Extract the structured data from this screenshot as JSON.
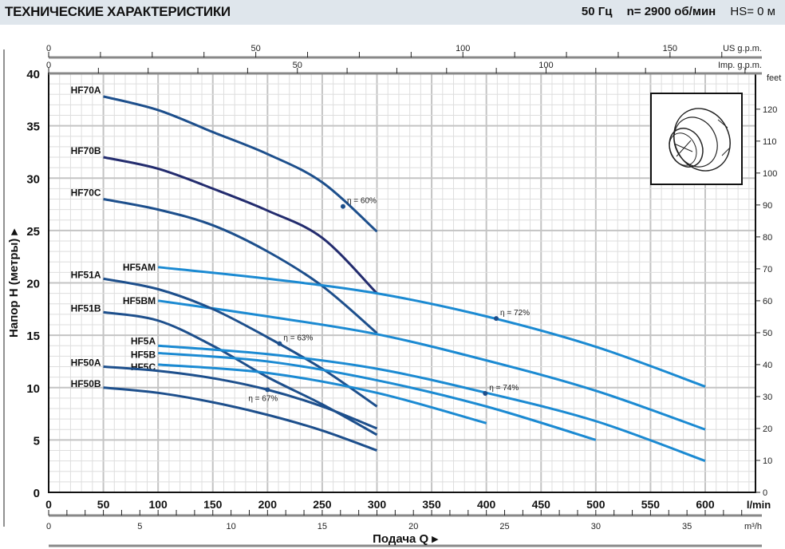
{
  "header": {
    "title": "ТЕХНИЧЕСКИЕ ХАРАКТЕРИСТИКИ",
    "frequency": "50 Гц",
    "speed": "n= 2900  об/мин",
    "hs": "HS= 0 м"
  },
  "chart_data": {
    "type": "line",
    "title": "ТЕХНИЧЕСКИЕ ХАРАКТЕРИСТИКИ",
    "xlabel": "Подача Q ▸",
    "ylabel": "Напор H (метры) ▸",
    "xlim": [
      0,
      600
    ],
    "ylim": [
      0,
      40
    ],
    "x_unit": "l/min",
    "x_ticks": [
      0,
      50,
      100,
      150,
      200,
      250,
      300,
      350,
      400,
      450,
      500,
      550,
      600
    ],
    "y_ticks": [
      0,
      5,
      10,
      15,
      20,
      25,
      30,
      35,
      40
    ],
    "grid": true,
    "secondary_axes": {
      "us_gpm": {
        "label": "US g.p.m.",
        "ticks": [
          0,
          50,
          100,
          150
        ],
        "range": [
          0,
          158.5
        ]
      },
      "imp_gpm": {
        "label": "Imp. g.p.m.",
        "ticks": [
          0,
          50,
          100
        ],
        "range": [
          0,
          132
        ]
      },
      "m3h": {
        "label": "m³/h",
        "ticks": [
          0,
          5,
          10,
          15,
          20,
          25,
          30,
          35
        ],
        "range": [
          0,
          36
        ]
      },
      "feet": {
        "label": "feet",
        "ticks": [
          0,
          10,
          20,
          30,
          40,
          50,
          60,
          70,
          80,
          90,
          100,
          110,
          120
        ],
        "range": [
          0,
          131.2
        ]
      }
    },
    "series": [
      {
        "name": "HF70A",
        "color": "#1d4f8c",
        "x": [
          50,
          100,
          150,
          200,
          250,
          300
        ],
        "y": [
          37.8,
          36.5,
          34.4,
          32.3,
          29.6,
          24.9
        ]
      },
      {
        "name": "HF70B",
        "color": "#232c6e",
        "x": [
          50,
          100,
          150,
          200,
          250,
          300
        ],
        "y": [
          32.0,
          30.9,
          29.0,
          26.9,
          24.3,
          19.0
        ]
      },
      {
        "name": "HF70C",
        "color": "#1d4f8c",
        "x": [
          50,
          100,
          150,
          200,
          250,
          300
        ],
        "y": [
          28.0,
          27.0,
          25.5,
          23.0,
          19.7,
          15.2
        ]
      },
      {
        "name": "HF5AM",
        "color": "#1b8ad2",
        "x": [
          100,
          200,
          300,
          400,
          500,
          600
        ],
        "y": [
          21.5,
          20.4,
          19.0,
          16.8,
          13.9,
          10.1
        ]
      },
      {
        "name": "HF5BM",
        "color": "#1b8ad2",
        "x": [
          100,
          200,
          300,
          400,
          500,
          600
        ],
        "y": [
          18.3,
          16.8,
          15.1,
          12.6,
          9.7,
          6.0
        ]
      },
      {
        "name": "HF51A",
        "color": "#1d4f8c",
        "x": [
          50,
          100,
          150,
          200,
          250,
          300
        ],
        "y": [
          20.4,
          19.4,
          17.5,
          14.8,
          11.8,
          8.2
        ]
      },
      {
        "name": "HF51B",
        "color": "#1d4f8c",
        "x": [
          50,
          100,
          150,
          200,
          250,
          300
        ],
        "y": [
          17.2,
          16.4,
          14.0,
          11.0,
          8.4,
          5.5
        ]
      },
      {
        "name": "HF5A",
        "color": "#1b8ad2",
        "x": [
          100,
          200,
          300,
          400,
          500,
          600
        ],
        "y": [
          14.0,
          13.2,
          11.8,
          9.5,
          6.8,
          3.0
        ]
      },
      {
        "name": "HF5B",
        "color": "#1b8ad2",
        "x": [
          100,
          200,
          300,
          400,
          500
        ],
        "y": [
          13.3,
          12.5,
          10.7,
          8.2,
          5.0
        ]
      },
      {
        "name": "HF5C",
        "color": "#1b8ad2",
        "x": [
          100,
          200,
          300,
          400
        ],
        "y": [
          12.2,
          11.4,
          9.5,
          6.6
        ]
      },
      {
        "name": "HF50A",
        "color": "#1d4f8c",
        "x": [
          50,
          100,
          150,
          200,
          250,
          300
        ],
        "y": [
          12.0,
          11.6,
          10.9,
          9.8,
          8.2,
          6.1
        ]
      },
      {
        "name": "HF50B",
        "color": "#1d4f8c",
        "x": [
          50,
          100,
          150,
          200,
          250,
          300
        ],
        "y": [
          10.0,
          9.5,
          8.6,
          7.4,
          5.9,
          4.0
        ]
      }
    ],
    "annotations": [
      {
        "text": "η = 60%",
        "x": 269,
        "y": 27.3,
        "series": "HF70A"
      },
      {
        "text": "η = 72%",
        "x": 409,
        "y": 16.6,
        "series": "HF5AM"
      },
      {
        "text": "η = 63%",
        "x": 211,
        "y": 14.2,
        "series": "HF51A"
      },
      {
        "text": "η = 74%",
        "x": 399,
        "y": 9.45,
        "series": "HF5A"
      },
      {
        "text": "η = 67%",
        "x": 200,
        "y": 9.8,
        "series": "HF50A"
      }
    ]
  }
}
